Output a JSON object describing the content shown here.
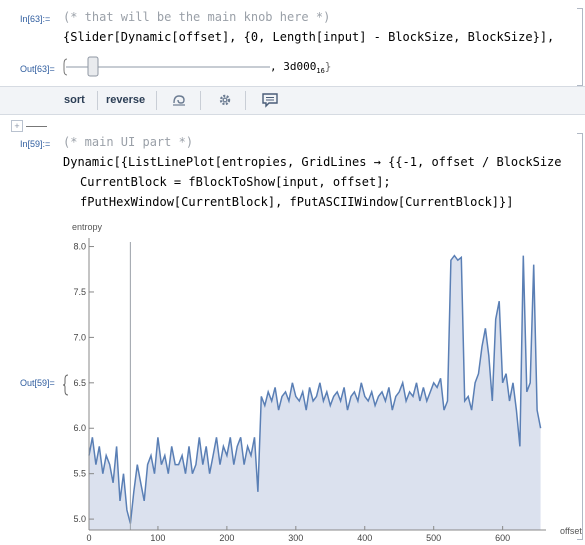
{
  "cell63": {
    "in_label": "In[63]:=",
    "comment": "(* that will be the main knob here *)",
    "code": "{Slider[Dynamic[offset], {0, Length[input] - BlockSize, BlockSize}],",
    "out_label": "Out[63]=",
    "output_prefix": ", 3d000",
    "output_subscript": "16"
  },
  "toolbar": {
    "sort_label": "sort",
    "reverse_label": "reverse"
  },
  "cell59": {
    "in_label": "In[59]:=",
    "comment": "(* main UI part *)",
    "line1": "Dynamic[{ListLinePlot[entropies, GridLines → {{-1, offset / BlockSize",
    "line2": "CurrentBlock = fBlockToShow[input, offset];",
    "line3": "fPutHexWindow[CurrentBlock], fPutASCIIWindow[CurrentBlock]}]",
    "out_label": "Out[59]="
  },
  "chart_data": {
    "type": "area",
    "xlabel": "offset",
    "ylabel": "entropy",
    "xlim": [
      0,
      660
    ],
    "ylim": [
      4.88,
      8.05
    ],
    "xticks": [
      0,
      100,
      200,
      300,
      400,
      500,
      600
    ],
    "yticks": [
      5.0,
      5.5,
      6.0,
      6.5,
      7.0,
      7.5,
      8.0
    ],
    "ytick_labels": [
      "5.0",
      "5.5",
      "6.0",
      "6.5",
      "7.0",
      "7.5",
      "8.0"
    ],
    "gridline_x": 60,
    "colors": {
      "line": "#5a7fb5",
      "fill": "#dbe1ee",
      "axis": "#888888",
      "grid": "#9aa0a8"
    },
    "series": [
      {
        "x": [
          0,
          5,
          10,
          15,
          20,
          25,
          30,
          35,
          40,
          45,
          50,
          55,
          60,
          65,
          70,
          75,
          80,
          85,
          90,
          95,
          100,
          105,
          110,
          115,
          120,
          125,
          130,
          135,
          140,
          145,
          150,
          155,
          160,
          165,
          170,
          175,
          180,
          185,
          190,
          195,
          200,
          205,
          210,
          215,
          220,
          225,
          230,
          235,
          240,
          245,
          250,
          255,
          260,
          265,
          270,
          275,
          280,
          285,
          290,
          295,
          300,
          305,
          310,
          315,
          320,
          325,
          330,
          335,
          340,
          345,
          350,
          355,
          360,
          365,
          370,
          375,
          380,
          385,
          390,
          395,
          400,
          405,
          410,
          415,
          420,
          425,
          430,
          435,
          440,
          445,
          450,
          455,
          460,
          465,
          470,
          475,
          480,
          485,
          490,
          495,
          500,
          505,
          510,
          515,
          520,
          525,
          530,
          535,
          540,
          545,
          550,
          555,
          560,
          565,
          570,
          575,
          580,
          585,
          590,
          595,
          600,
          605,
          610,
          615,
          620,
          625,
          630,
          635,
          640,
          645,
          650,
          655
        ],
        "y": [
          5.7,
          5.9,
          5.6,
          5.8,
          5.5,
          5.7,
          5.6,
          5.4,
          5.8,
          5.2,
          5.5,
          5.1,
          4.95,
          5.3,
          5.6,
          5.4,
          5.2,
          5.6,
          5.7,
          5.5,
          5.9,
          5.6,
          5.7,
          5.5,
          5.8,
          5.6,
          5.6,
          5.7,
          5.5,
          5.8,
          5.5,
          5.6,
          5.9,
          5.6,
          5.8,
          5.5,
          5.7,
          5.9,
          5.6,
          5.8,
          5.7,
          5.9,
          5.6,
          5.8,
          5.9,
          5.6,
          5.8,
          5.7,
          5.9,
          5.3,
          6.35,
          6.25,
          6.4,
          6.3,
          6.45,
          6.2,
          6.35,
          6.4,
          6.3,
          6.5,
          6.35,
          6.3,
          6.4,
          6.2,
          6.45,
          6.3,
          6.35,
          6.5,
          6.3,
          6.4,
          6.25,
          6.35,
          6.4,
          6.3,
          6.45,
          6.2,
          6.35,
          6.4,
          6.3,
          6.5,
          6.35,
          6.3,
          6.4,
          6.25,
          6.35,
          6.4,
          6.3,
          6.45,
          6.2,
          6.35,
          6.4,
          6.5,
          6.3,
          6.4,
          6.35,
          6.5,
          6.3,
          6.45,
          6.3,
          6.4,
          6.5,
          6.45,
          6.55,
          6.2,
          6.3,
          7.85,
          7.9,
          7.85,
          7.88,
          6.3,
          6.35,
          6.2,
          6.5,
          6.6,
          6.9,
          7.1,
          6.8,
          6.3,
          7.2,
          7.4,
          6.5,
          6.6,
          6.3,
          6.5,
          6.2,
          5.8,
          7.9,
          6.4,
          6.5,
          7.8,
          6.2,
          6.0
        ]
      }
    ]
  }
}
